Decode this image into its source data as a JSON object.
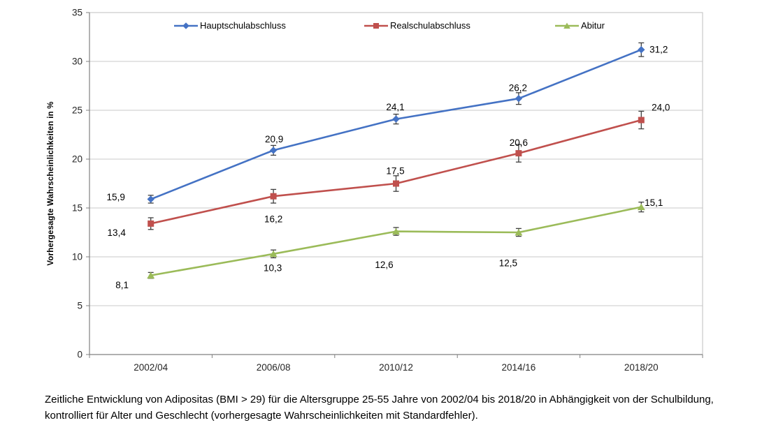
{
  "figure": {
    "caption": "Zeitliche Entwicklung von Adipositas (BMI > 29) für die Altersgruppe 25-55 Jahre von 2002/04 bis 2018/20 in Abhängigkeit von der Schulbildung, kontrolliert für Alter und Geschlecht (vorhergesagte Wahrscheinlichkeiten mit Standardfehler)."
  },
  "chart_data": {
    "type": "line",
    "title": "",
    "xlabel": "",
    "ylabel": "Vorhergesagte Wahrscheinlichkeiten in %",
    "ylim": [
      0,
      35
    ],
    "ytick_step": 5,
    "yticks": [
      "0",
      "5",
      "10",
      "15",
      "20",
      "25",
      "30",
      "35"
    ],
    "categories": [
      "2002/04",
      "2006/08",
      "2010/12",
      "2014/16",
      "2018/20"
    ],
    "grid": "horizontal",
    "legend_position": "top-inside",
    "error_bars": true,
    "series": [
      {
        "name": "Hauptschulabschluss",
        "color": "#4472C4",
        "marker": "diamond",
        "values": [
          15.9,
          20.9,
          24.1,
          26.2,
          31.2
        ],
        "labels": [
          "15,9",
          "20,9",
          "24,1",
          "26,2",
          "31,2"
        ],
        "stderr": [
          0.4,
          0.5,
          0.5,
          0.6,
          0.7
        ]
      },
      {
        "name": "Realschulabschluss",
        "color": "#C0504D",
        "marker": "square",
        "values": [
          13.4,
          16.2,
          17.5,
          20.6,
          24.0
        ],
        "labels": [
          "13,4",
          "16,2",
          "17,5",
          "20,6",
          "24,0"
        ],
        "stderr": [
          0.6,
          0.7,
          0.8,
          0.9,
          0.9
        ]
      },
      {
        "name": "Abitur",
        "color": "#9BBB59",
        "marker": "triangle",
        "values": [
          8.1,
          10.3,
          12.6,
          12.5,
          15.1
        ],
        "labels": [
          "8,1",
          "10,3",
          "12,6",
          "12,5",
          "15,1"
        ],
        "stderr": [
          0.3,
          0.4,
          0.4,
          0.4,
          0.5
        ]
      }
    ],
    "label_offsets": [
      [
        [
          -50,
          -3
        ],
        [
          1,
          -16
        ],
        [
          -1,
          -17
        ],
        [
          -1,
          -15
        ],
        [
          25,
          0
        ]
      ],
      [
        [
          -49,
          13
        ],
        [
          0,
          33
        ],
        [
          -1,
          -18
        ],
        [
          0,
          -15
        ],
        [
          28,
          -18
        ]
      ],
      [
        [
          -41,
          14
        ],
        [
          -1,
          20
        ],
        [
          -17,
          48
        ],
        [
          -15,
          44
        ],
        [
          18,
          -6
        ]
      ]
    ],
    "legend_item_lefts": [
      248,
      520,
      793
    ],
    "colors": {
      "grid": "#C9C9C9",
      "border": "#BFBFBF",
      "axis": "#808080",
      "error_bar": "#3F3F3F",
      "tick_text": "#262626",
      "label_text": "#000000"
    }
  }
}
